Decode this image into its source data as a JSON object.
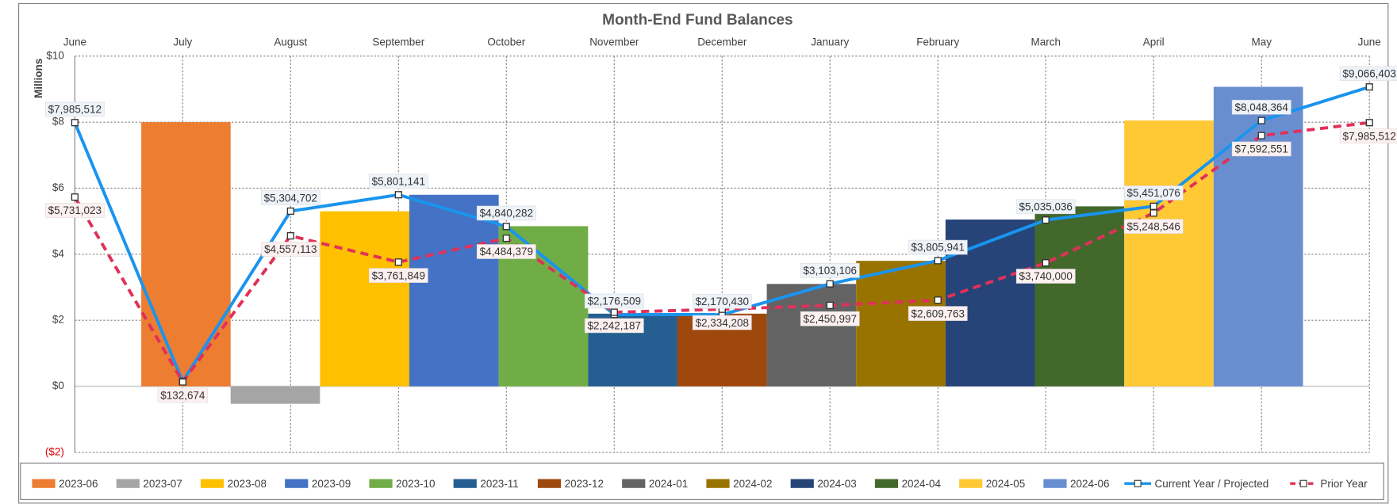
{
  "chart_data": {
    "type": "combo",
    "title": "Month-End Fund Balances",
    "y_axis_label": "Millions",
    "categories": [
      "June",
      "July",
      "August",
      "September",
      "October",
      "November",
      "December",
      "January",
      "February",
      "March",
      "April",
      "May",
      "June"
    ],
    "ylim": [
      -2,
      10
    ],
    "yticks": [
      {
        "value": 10,
        "label": "$10"
      },
      {
        "value": 8,
        "label": "$8"
      },
      {
        "value": 6,
        "label": "$6"
      },
      {
        "value": 4,
        "label": "$4"
      },
      {
        "value": 2,
        "label": "$2"
      },
      {
        "value": 0,
        "label": "$0"
      },
      {
        "value": -2,
        "label": "($2)"
      }
    ],
    "negative_tick_color": "#e00000",
    "grid": true,
    "legend": "bottom",
    "bars": [
      {
        "name": "2023-06",
        "color": "#ed7d31",
        "value": 8.0
      },
      {
        "name": "2023-07",
        "color": "#a5a5a5",
        "value": -0.53
      },
      {
        "name": "2023-08",
        "color": "#ffc000",
        "value": 5.3
      },
      {
        "name": "2023-09",
        "color": "#4472c4",
        "value": 5.8
      },
      {
        "name": "2023-10",
        "color": "#70ad47",
        "value": 4.85
      },
      {
        "name": "2023-11",
        "color": "#255e91",
        "value": 2.2
      },
      {
        "name": "2023-12",
        "color": "#9e480e",
        "value": 2.2
      },
      {
        "name": "2024-01",
        "color": "#636363",
        "value": 3.1
      },
      {
        "name": "2024-02",
        "color": "#997300",
        "value": 3.8
      },
      {
        "name": "2024-03",
        "color": "#264478",
        "value": 5.05
      },
      {
        "name": "2024-04",
        "color": "#43682b",
        "value": 5.45
      },
      {
        "name": "2024-05",
        "color": "#ffc935",
        "value": 8.05
      },
      {
        "name": "2024-06",
        "color": "#698ed0",
        "value": 9.07
      }
    ],
    "series": [
      {
        "name": "Current Year / Projected",
        "type": "line",
        "color": "#1a94ee",
        "dash": false,
        "label_position": "above",
        "values": [
          7.985512,
          0.15,
          5.304702,
          5.801141,
          4.840282,
          2.176509,
          2.17043,
          3.103106,
          3.805941,
          5.035036,
          5.451076,
          8.048364,
          9.066403
        ],
        "value_labels": [
          "$7,985,512",
          null,
          "$5,304,702",
          "$5,801,141",
          "$4,840,282",
          "$2,176,509",
          "$2,170,430",
          "$3,103,106",
          "$3,805,941",
          "$5,035,036",
          "$5,451,076",
          "$8,048,364",
          "$9,066,403"
        ]
      },
      {
        "name": "Prior Year",
        "type": "line",
        "color": "#e0315a",
        "dash": true,
        "label_position": "below",
        "values": [
          5.731023,
          0.132674,
          4.557113,
          3.761849,
          4.484379,
          2.242187,
          2.334208,
          2.450997,
          2.609763,
          3.74,
          5.248546,
          7.592551,
          7.985512
        ],
        "value_labels": [
          "$5,731,023",
          "$132,674",
          "$4,557,113",
          "$3,761,849",
          "$4,484,379",
          "$2,242,187",
          "$2,334,208",
          "$2,450,997",
          "$2,609,763",
          "$3,740,000",
          "$5,248,546",
          "$7,592,551",
          "$7,985,512"
        ]
      }
    ]
  }
}
